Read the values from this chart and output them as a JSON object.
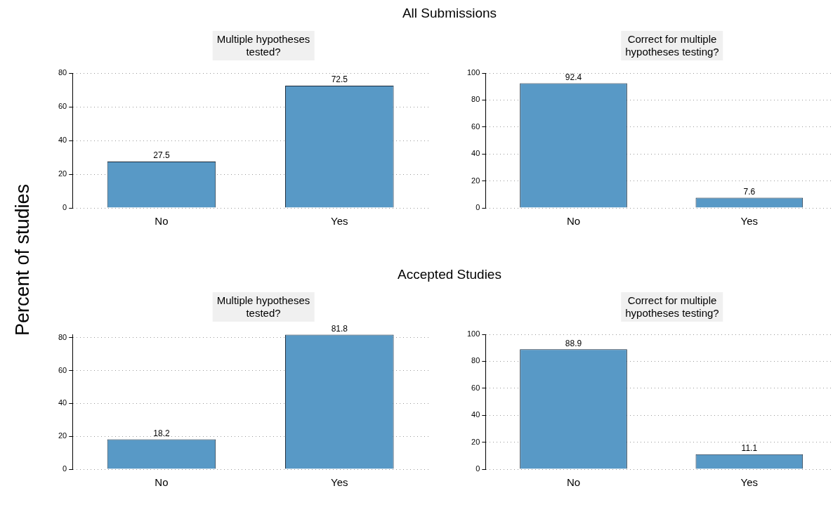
{
  "chart_data": [
    {
      "type": "bar",
      "subtitle": "All Submissions",
      "ylabel": "Percent of studies",
      "title": "Multiple hypotheses\ntested?",
      "categories": [
        "No",
        "Yes"
      ],
      "values": [
        27.5,
        72.5
      ],
      "color": "#5899c6",
      "ylim": [
        0,
        80
      ],
      "yticks": [
        0,
        20,
        40,
        60,
        80
      ],
      "grid": "y",
      "data_labels": true
    },
    {
      "type": "bar",
      "title": "Correct for multiple\nhypotheses testing?",
      "categories": [
        "No",
        "Yes"
      ],
      "values": [
        92.4,
        7.6
      ],
      "color": "#5899c6",
      "ylim": [
        0,
        100
      ],
      "yticks": [
        0,
        20,
        40,
        60,
        80,
        100
      ],
      "grid": "y",
      "data_labels": true
    },
    {
      "type": "bar",
      "subtitle": "Accepted Studies",
      "title": "Multiple hypotheses\ntested?",
      "categories": [
        "No",
        "Yes"
      ],
      "values": [
        18.2,
        81.8
      ],
      "color": "#5899c6",
      "ylim": [
        0,
        82
      ],
      "yticks": [
        0,
        20,
        40,
        60,
        80
      ],
      "grid": "y",
      "data_labels": true
    },
    {
      "type": "bar",
      "title": "Correct for multiple\nhypotheses testing?",
      "categories": [
        "No",
        "Yes"
      ],
      "values": [
        88.9,
        11.1
      ],
      "color": "#5899c6",
      "ylim": [
        0,
        100
      ],
      "yticks": [
        0,
        20,
        40,
        60,
        80,
        100
      ],
      "grid": "y",
      "data_labels": true
    }
  ]
}
